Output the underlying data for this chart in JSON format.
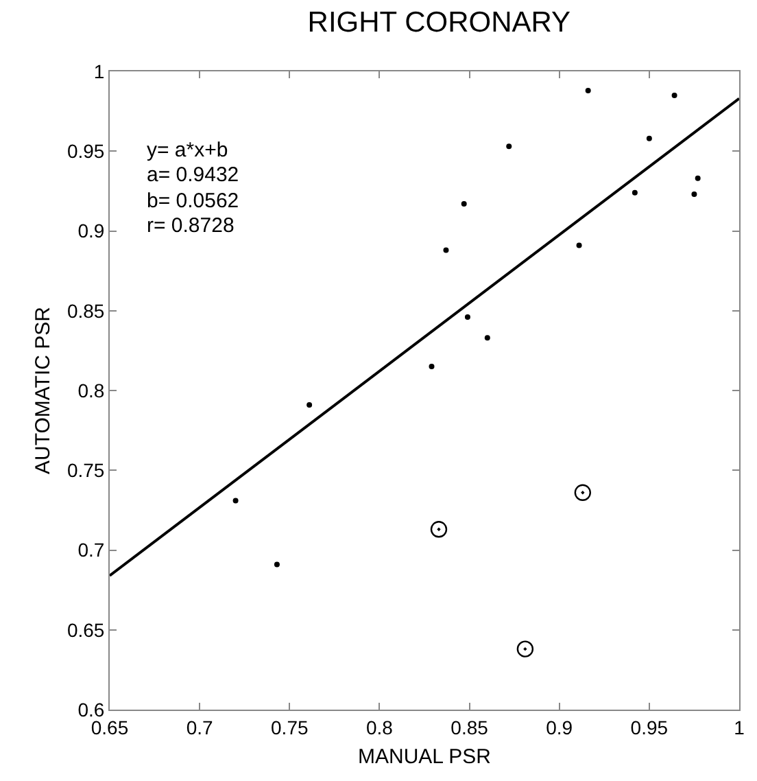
{
  "chart_data": {
    "type": "scatter",
    "title": "RIGHT CORONARY",
    "xlabel": "MANUAL PSR",
    "ylabel": "AUTOMATIC PSR",
    "xlim": [
      0.65,
      1
    ],
    "xticks": [
      0.65,
      0.7,
      0.75,
      0.8,
      0.85,
      0.9,
      0.95,
      1
    ],
    "ylim": [
      0.6,
      1
    ],
    "yticks": [
      0.6,
      0.65,
      0.7,
      0.75,
      0.8,
      0.85,
      0.9,
      0.95,
      1
    ],
    "grid": false,
    "annotations": [
      "y= a*x+b",
      "a= 0.9432",
      "b= 0.0562",
      "r= 0.8728"
    ],
    "series": [
      {
        "color": "#000000",
        "marker": "circle",
        "x": [
          0.916,
          0.964,
          0.872,
          0.95,
          0.942,
          0.977,
          0.975,
          0.847,
          0.837,
          0.911,
          0.849,
          0.86,
          0.829,
          0.761,
          0.72,
          0.743
        ],
        "values": [
          0.988,
          0.985,
          0.953,
          0.958,
          0.924,
          0.933,
          0.923,
          0.917,
          0.888,
          0.891,
          0.846,
          0.833,
          0.815,
          0.791,
          0.731,
          0.691
        ]
      },
      {
        "color": "#000000",
        "marker": "circle",
        "x": [
          0.833,
          0.913,
          0.881
        ],
        "values": [
          0.713,
          0.736,
          0.638
        ]
      },
      {
        "type": "line",
        "color": "#000000",
        "line_style": "solid",
        "marker": "none",
        "x": [
          0.65,
          1
        ],
        "values": [
          0.684,
          0.983
        ]
      }
    ]
  }
}
